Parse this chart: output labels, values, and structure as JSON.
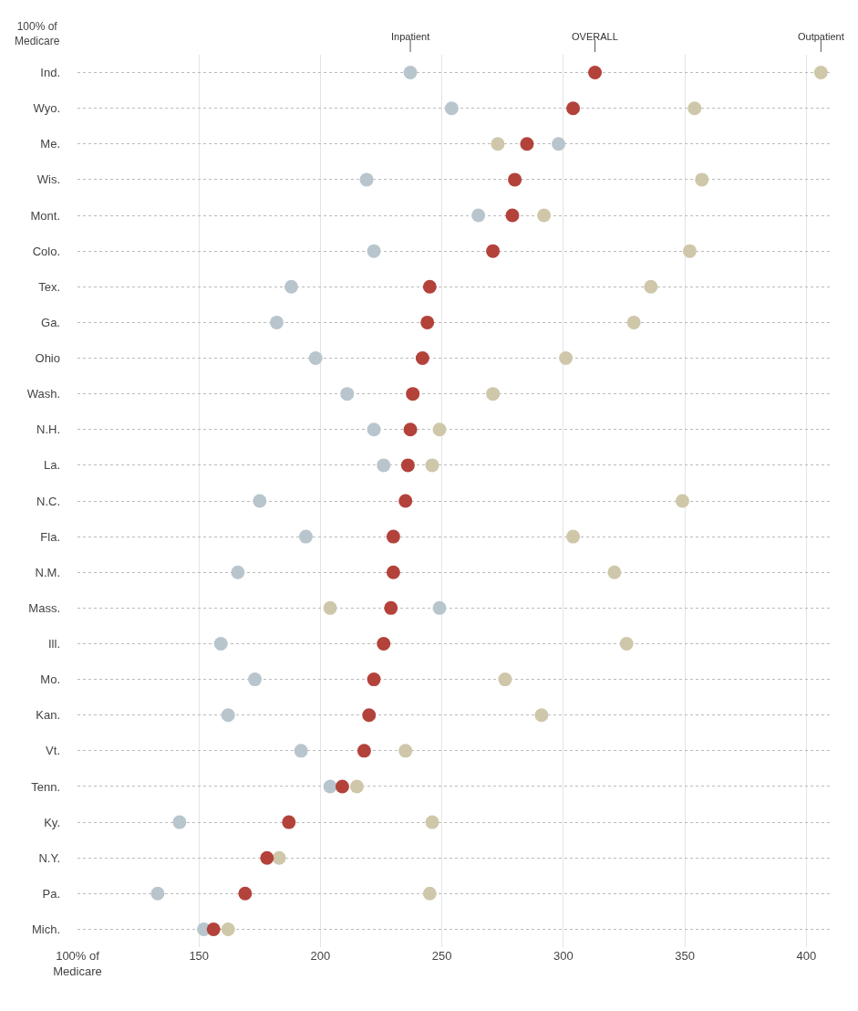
{
  "chart_data": {
    "type": "scatter",
    "orientation": "horizontal",
    "categories": [
      "Ind.",
      "Wyo.",
      "Me.",
      "Wis.",
      "Mont.",
      "Colo.",
      "Tex.",
      "Ga.",
      "Ohio",
      "Wash.",
      "N.H.",
      "La.",
      "N.C.",
      "Fla.",
      "N.M.",
      "Mass.",
      "Ill.",
      "Mo.",
      "Kan.",
      "Vt.",
      "Tenn.",
      "Ky.",
      "N.Y.",
      "Pa.",
      "Mich."
    ],
    "series": [
      {
        "name": "Inpatient",
        "color": "#b9c5cd",
        "values": [
          237,
          254,
          298,
          219,
          265,
          222,
          188,
          182,
          198,
          211,
          222,
          226,
          175,
          194,
          166,
          249,
          159,
          173,
          162,
          192,
          204,
          142,
          null,
          133,
          152
        ]
      },
      {
        "name": "Outpatient",
        "color": "#cfc7a9",
        "values": [
          406,
          354,
          273,
          357,
          292,
          352,
          336,
          329,
          301,
          271,
          249,
          246,
          349,
          304,
          321,
          204,
          326,
          276,
          291,
          235,
          215,
          246,
          183,
          245,
          162
        ]
      },
      {
        "name": "OVERALL",
        "color": "#b3423b",
        "values": [
          313,
          304,
          285,
          280,
          279,
          271,
          245,
          244,
          242,
          238,
          237,
          236,
          235,
          230,
          230,
          229,
          226,
          222,
          220,
          218,
          209,
          187,
          178,
          169,
          156
        ]
      }
    ],
    "xlim": [
      100,
      410
    ],
    "xticks": [
      {
        "value": 100,
        "label": "100% of\nMedicare"
      },
      150,
      200,
      250,
      300,
      350,
      400
    ],
    "annotations": [
      "100% of\nMedicare"
    ],
    "grid": true,
    "legend": false,
    "marker": "circle"
  }
}
